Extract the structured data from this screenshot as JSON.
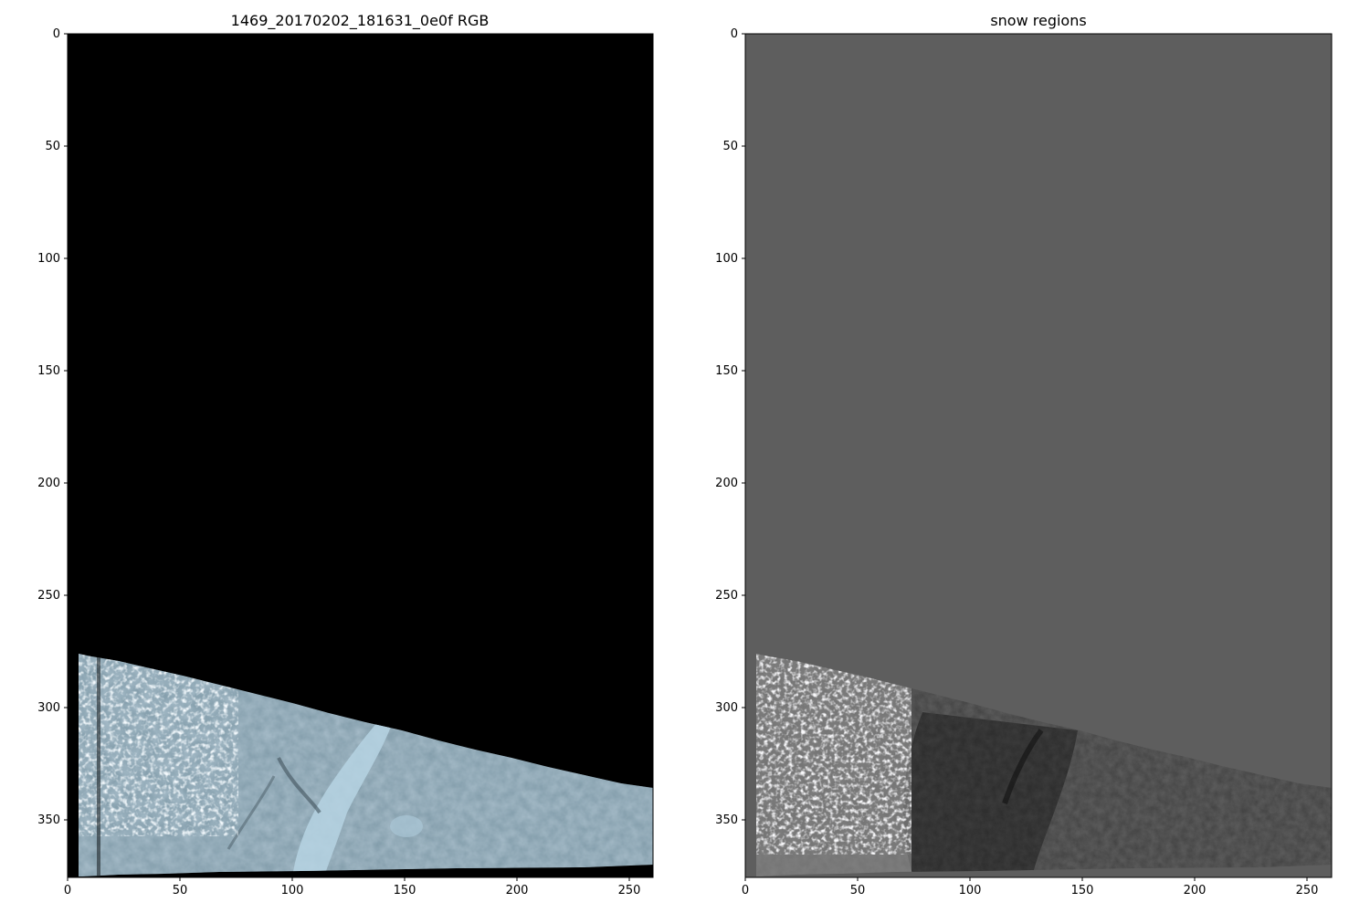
{
  "figure": {
    "left_panel": {
      "title": "1469_20170202_181631_0e0f RGB",
      "x_ticks": [
        "0",
        "50",
        "100",
        "150",
        "200",
        "250"
      ],
      "y_ticks": [
        "0",
        "50",
        "100",
        "150",
        "200",
        "250",
        "300",
        "350"
      ],
      "background_color": "#000000",
      "image_tint": "#8fb0c4"
    },
    "right_panel": {
      "title": "snow regions",
      "x_ticks": [
        "0",
        "50",
        "100",
        "150",
        "200",
        "250"
      ],
      "y_ticks": [
        "0",
        "50",
        "100",
        "150",
        "200",
        "250",
        "300",
        "350"
      ],
      "background_color": "#5e5e5e",
      "image_tint": "grayscale"
    }
  }
}
